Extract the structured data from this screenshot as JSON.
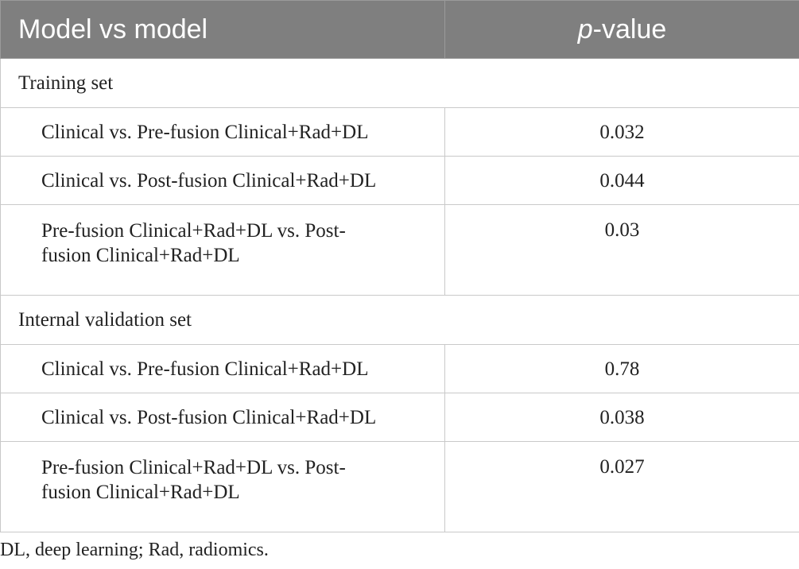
{
  "table": {
    "header": {
      "col1": "Model vs model",
      "col2_italic": "p",
      "col2_rest": "-value"
    },
    "sections": [
      {
        "title": "Training set",
        "rows": [
          {
            "comparison": "Clinical vs. Pre-fusion Clinical+Rad+DL",
            "p": "0.032"
          },
          {
            "comparison": "Clinical vs. Post-fusion Clinical+Rad+DL",
            "p": "0.044"
          },
          {
            "comparison_line1": "Pre-fusion Clinical+Rad+DL vs. Post-",
            "comparison_line2": "fusion Clinical+Rad+DL",
            "p": "0.03"
          }
        ]
      },
      {
        "title": "Internal validation set",
        "rows": [
          {
            "comparison": "Clinical vs. Pre-fusion Clinical+Rad+DL",
            "p": "0.78"
          },
          {
            "comparison": "Clinical vs. Post-fusion Clinical+Rad+DL",
            "p": "0.038"
          },
          {
            "comparison_line1": "Pre-fusion Clinical+Rad+DL vs. Post-",
            "comparison_line2": "fusion Clinical+Rad+DL",
            "p": "0.027"
          }
        ]
      }
    ]
  },
  "footnote": "DL, deep learning; Rad, radiomics.",
  "colors": {
    "header_bg": "#7f7f7f",
    "header_text": "#ffffff",
    "border": "#c9c9c9"
  }
}
